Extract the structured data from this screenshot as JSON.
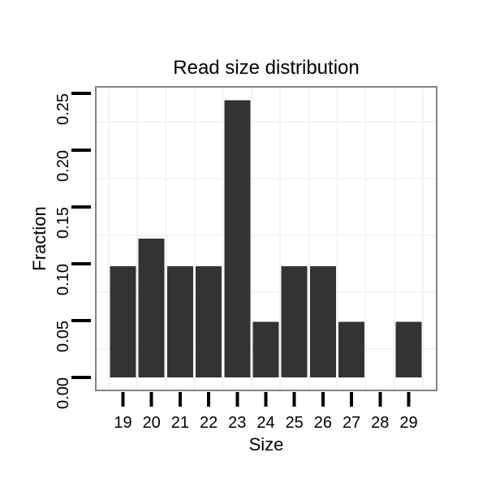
{
  "chart_data": {
    "type": "bar",
    "title": "Read size distribution",
    "xlabel": "Size",
    "ylabel": "Fraction",
    "categories": [
      "19",
      "20",
      "21",
      "22",
      "23",
      "24",
      "25",
      "26",
      "27",
      "28",
      "29"
    ],
    "values": [
      0.098,
      0.122,
      0.098,
      0.098,
      0.244,
      0.049,
      0.098,
      0.098,
      0.049,
      0,
      0.049
    ],
    "y_tick_labels": [
      "0.00",
      "0.05",
      "0.10",
      "0.15",
      "0.20",
      "0.25"
    ],
    "y_tick_values": [
      0,
      0.05,
      0.1,
      0.15,
      0.2,
      0.25
    ],
    "ylim": [
      0,
      0.25
    ],
    "xlim": [
      18,
      30
    ],
    "grid": "minor gridlines only, between ticks",
    "legend": "none",
    "bar_gap_category": "28",
    "colors": {
      "bar": "#333333",
      "panel_border": "#848484",
      "grid": "#f3f3f3",
      "tick": "#000000",
      "text": "#000000",
      "background": "#ffffff"
    }
  }
}
